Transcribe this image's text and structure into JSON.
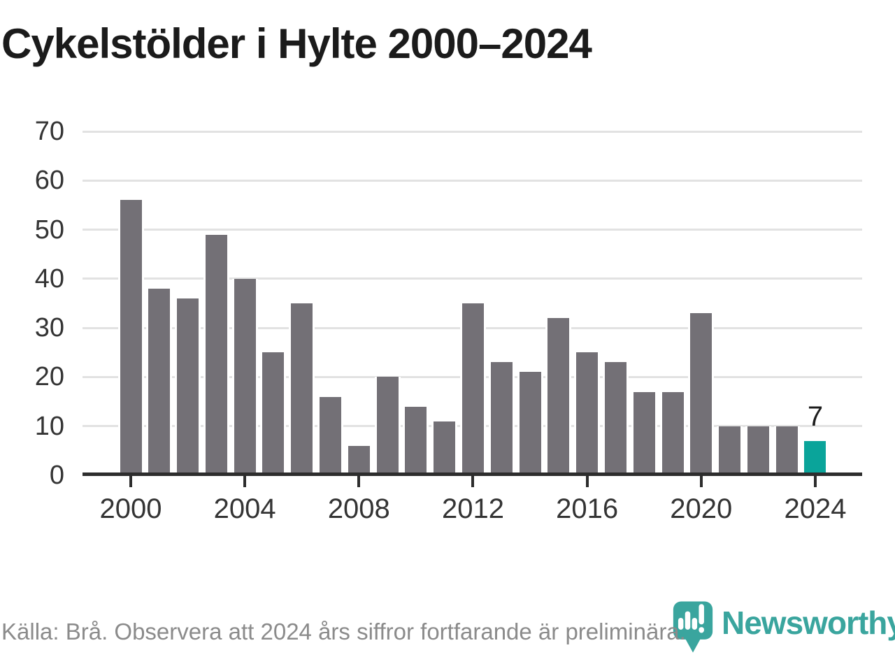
{
  "title": "Cykelstölder i Hylte 2000–2024",
  "footer": {
    "source_note": "Källa: Brå. Observera att 2024 års siffror fortfarande är preliminära."
  },
  "branding": {
    "logo_text": "Newsworthy",
    "logo_icon": "newsworthy-pin-barchart-icon"
  },
  "colors": {
    "bar": "#737076",
    "highlight": "#0aa49a",
    "grid": "#e2e2e2",
    "axis": "#2d2d2d",
    "axis_text": "#343434",
    "title_text": "#1b1b1b",
    "footer_text": "#8b8b8b",
    "brand": "#3aa59e",
    "value_label": "#1d1d1d"
  },
  "chart_data": {
    "type": "bar",
    "title": "Cykelstölder i Hylte 2000–2024",
    "x": [
      2000,
      2001,
      2002,
      2003,
      2004,
      2005,
      2006,
      2007,
      2008,
      2009,
      2010,
      2011,
      2012,
      2013,
      2014,
      2015,
      2016,
      2017,
      2018,
      2019,
      2020,
      2021,
      2022,
      2023,
      2024
    ],
    "values": [
      56,
      38,
      36,
      49,
      40,
      25,
      35,
      16,
      6,
      20,
      14,
      11,
      35,
      23,
      21,
      32,
      25,
      23,
      17,
      17,
      33,
      10,
      10,
      10,
      7
    ],
    "highlight": {
      "year": 2024,
      "label": "7"
    },
    "xlabel": "",
    "ylabel": "",
    "ylim": [
      0,
      70
    ],
    "yticks": [
      0,
      10,
      20,
      30,
      40,
      50,
      60,
      70
    ],
    "xticks": [
      2000,
      2004,
      2008,
      2012,
      2016,
      2020,
      2024
    ],
    "grid": true,
    "legend": "none",
    "source": "Källa: Brå. Observera att 2024 års siffror fortfarande är preliminära."
  }
}
